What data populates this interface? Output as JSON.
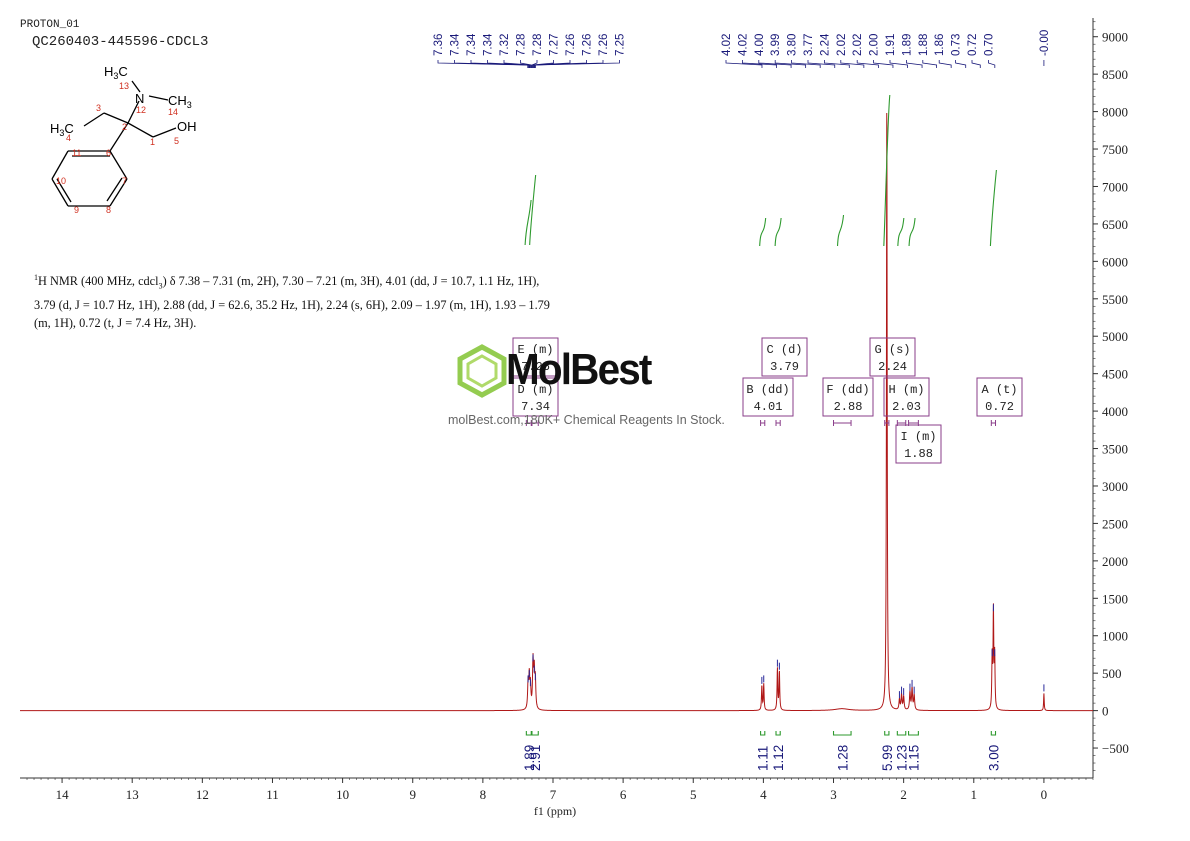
{
  "header": {
    "experiment": "PROTON_01",
    "sample": "QC260403-445596-CDCL3"
  },
  "molecule": {
    "atoms": {
      "nme_top": "H3C",
      "n": "N",
      "nme_right": "CH3",
      "ch3": "H3C",
      "oh": "OH"
    },
    "numbers": [
      "13",
      "12",
      "14",
      "3",
      "2",
      "4",
      "1",
      "5",
      "11",
      "6",
      "10",
      "7",
      "9",
      "8"
    ]
  },
  "nmr_text": {
    "line1": "H NMR (400 MHz, cdcl",
    "sup": "1",
    "sub": "3",
    "line1b": ") δ 7.38 – 7.31 (m, 2H), 7.30 – 7.21 (m, 3H), 4.01 (dd, J = 10.7, 1.1 Hz, 1H),",
    "line2": "3.79 (d, J = 10.7 Hz, 1H), 2.88 (dd, J = 62.6, 35.2 Hz, 1H), 2.24 (s, 6H), 2.09 – 1.97 (m, 1H), 1.93 – 1.79",
    "line3": "(m, 1H), 0.72 (t, J = 7.4 Hz, 3H)."
  },
  "watermark": {
    "brand": "MolBest",
    "tagline": "molBest.com,180K+ Chemical Reagents In Stock."
  },
  "colors": {
    "spectrum": "#b01818",
    "peak_labels": "#1a1a7a",
    "integral": "#2e9a2e",
    "multiplet_box": "#8a3d8a",
    "axis": "#333333",
    "atom_number": "#d03020"
  },
  "chart_data": {
    "type": "line",
    "title": "",
    "xlabel": "f1 (ppm)",
    "ylabel": "",
    "xlim": [
      14.6,
      -0.7
    ],
    "ylim": [
      -900,
      9250
    ],
    "x_ticks": [
      14,
      13,
      12,
      11,
      10,
      9,
      8,
      7,
      6,
      5,
      4,
      3,
      2,
      1,
      0
    ],
    "y_ticks": [
      9000,
      8500,
      8000,
      7500,
      7000,
      6500,
      6000,
      5500,
      5000,
      4500,
      4000,
      3500,
      3000,
      2500,
      2000,
      1500,
      1000,
      500,
      0,
      -500
    ],
    "peaks": [
      {
        "ppm": 7.355,
        "height": 350,
        "width": 0.008
      },
      {
        "ppm": 7.338,
        "height": 420,
        "width": 0.008
      },
      {
        "ppm": 7.322,
        "height": 300,
        "width": 0.008
      },
      {
        "ppm": 7.285,
        "height": 630,
        "width": 0.008
      },
      {
        "ppm": 7.268,
        "height": 480,
        "width": 0.008
      },
      {
        "ppm": 7.252,
        "height": 380,
        "width": 0.008
      },
      {
        "ppm": 4.022,
        "height": 330,
        "width": 0.006
      },
      {
        "ppm": 3.995,
        "height": 350,
        "width": 0.006
      },
      {
        "ppm": 3.8,
        "height": 560,
        "width": 0.006
      },
      {
        "ppm": 3.772,
        "height": 520,
        "width": 0.006
      },
      {
        "ppm": 2.88,
        "height": 25,
        "width": 0.12
      },
      {
        "ppm": 2.24,
        "height": 8200,
        "width": 0.006
      },
      {
        "ppm": 2.06,
        "height": 140,
        "width": 0.008
      },
      {
        "ppm": 2.03,
        "height": 200,
        "width": 0.008
      },
      {
        "ppm": 2.0,
        "height": 180,
        "width": 0.008
      },
      {
        "ppm": 1.91,
        "height": 240,
        "width": 0.008
      },
      {
        "ppm": 1.88,
        "height": 290,
        "width": 0.008
      },
      {
        "ppm": 1.85,
        "height": 200,
        "width": 0.008
      },
      {
        "ppm": 0.738,
        "height": 700,
        "width": 0.006
      },
      {
        "ppm": 0.72,
        "height": 1300,
        "width": 0.006
      },
      {
        "ppm": 0.702,
        "height": 700,
        "width": 0.006
      },
      {
        "ppm": 0.0,
        "height": 230,
        "width": 0.005
      }
    ],
    "peak_labels": {
      "aromatic": [
        "7.36",
        "7.34",
        "7.34",
        "7.34",
        "7.32",
        "7.28",
        "7.28",
        "7.27",
        "7.26",
        "7.26",
        "7.26",
        "7.25"
      ],
      "aliphatic": [
        "4.02",
        "4.02",
        "4.00",
        "3.99",
        "3.80",
        "3.77",
        "2.24",
        "2.02",
        "2.02",
        "2.00",
        "1.91",
        "1.89",
        "1.88",
        "1.86",
        "0.73",
        "0.72",
        "0.70"
      ],
      "tms": [
        "-0.00"
      ]
    },
    "multiplets": [
      {
        "letter": "E",
        "mult": "m",
        "shift": "7.26",
        "from": 7.3,
        "to": 7.21
      },
      {
        "letter": "D",
        "mult": "m",
        "shift": "7.34",
        "from": 7.38,
        "to": 7.31
      },
      {
        "letter": "C",
        "mult": "d",
        "shift": "3.79",
        "from": 3.82,
        "to": 3.76
      },
      {
        "letter": "B",
        "mult": "dd",
        "shift": "4.01",
        "from": 4.04,
        "to": 3.98
      },
      {
        "letter": "F",
        "mult": "dd",
        "shift": "2.88",
        "from": 3.0,
        "to": 2.75
      },
      {
        "letter": "G",
        "mult": "s",
        "shift": "2.24",
        "from": 2.27,
        "to": 2.21
      },
      {
        "letter": "H",
        "mult": "m",
        "shift": "2.03",
        "from": 2.09,
        "to": 1.97
      },
      {
        "letter": "I",
        "mult": "m",
        "shift": "1.88",
        "from": 1.93,
        "to": 1.79
      },
      {
        "letter": "A",
        "mult": "t",
        "shift": "0.72",
        "from": 0.75,
        "to": 0.69
      }
    ],
    "integrals": [
      {
        "label": "1.89",
        "from": 7.38,
        "to": 7.31
      },
      {
        "label": "2.91",
        "from": 7.3,
        "to": 7.21
      },
      {
        "label": "1.11",
        "from": 4.04,
        "to": 3.98
      },
      {
        "label": "1.12",
        "from": 3.82,
        "to": 3.76
      },
      {
        "label": "1.28",
        "from": 3.0,
        "to": 2.75
      },
      {
        "label": "5.99",
        "from": 2.27,
        "to": 2.21
      },
      {
        "label": "1.23",
        "from": 2.09,
        "to": 1.97
      },
      {
        "label": "1.15",
        "from": 1.93,
        "to": 1.79
      },
      {
        "label": "3.00",
        "from": 0.75,
        "to": 0.69
      }
    ]
  }
}
